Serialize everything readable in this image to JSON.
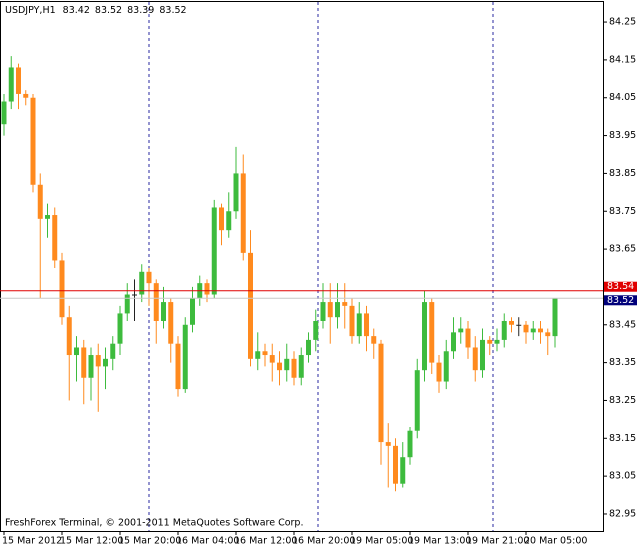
{
  "chart_data": {
    "type": "candlestick",
    "symbol": "USDJPY,H1",
    "footer": "FreshForex Terminal, © 2001-2011 MetaQuotes Software Corp.",
    "up_color": "#3dbb3d",
    "down_color": "#ff8a1e",
    "doji_color": "#222222",
    "categories": [
      "15 Mar 2012",
      null,
      null,
      null,
      null,
      null,
      null,
      null,
      "15 Mar 12:00",
      null,
      null,
      null,
      null,
      null,
      null,
      null,
      "15 Mar 20:00",
      null,
      null,
      null,
      null,
      null,
      null,
      null,
      "16 Mar 04:00",
      null,
      null,
      null,
      null,
      null,
      null,
      null,
      "16 Mar 12:00",
      null,
      null,
      null,
      null,
      null,
      null,
      null,
      "16 Mar 20:00",
      null,
      null,
      null,
      null,
      null,
      null,
      null,
      "19 Mar 05:00",
      null,
      null,
      null,
      null,
      null,
      null,
      null,
      "19 Mar 13:00",
      null,
      null,
      null,
      null,
      null,
      null,
      null,
      "19 Mar 21:00",
      null,
      null,
      null,
      null,
      null,
      null,
      null,
      "20 Mar 05:00",
      null,
      null,
      null,
      null
    ],
    "open": [
      83.98,
      84.04,
      84.13,
      84.06,
      84.05,
      83.82,
      83.73,
      83.74,
      83.62,
      83.47,
      83.37,
      83.39,
      83.31,
      83.37,
      83.34,
      83.36,
      83.4,
      83.48,
      83.53,
      83.53,
      83.59,
      83.56,
      83.46,
      83.51,
      83.4,
      83.28,
      83.45,
      83.52,
      83.56,
      83.53,
      83.76,
      83.7,
      83.75,
      83.85,
      83.64,
      83.36,
      83.38,
      83.37,
      83.35,
      83.33,
      83.36,
      83.31,
      83.37,
      83.41,
      83.46,
      83.51,
      83.47,
      83.51,
      83.5,
      83.42,
      83.48,
      83.42,
      83.4,
      83.14,
      83.13,
      83.03,
      83.1,
      83.17,
      83.33,
      83.51,
      83.35,
      83.3,
      83.38,
      83.43,
      83.44,
      83.39,
      83.33,
      83.41,
      83.4,
      83.41,
      83.46,
      83.45,
      83.45,
      83.43,
      83.44,
      83.43,
      83.42
    ],
    "high": [
      84.06,
      84.16,
      84.14,
      84.07,
      84.06,
      83.85,
      83.77,
      83.76,
      83.64,
      83.5,
      83.42,
      83.41,
      83.39,
      83.4,
      83.39,
      83.42,
      83.5,
      83.56,
      83.57,
      83.61,
      83.6,
      83.57,
      83.55,
      83.52,
      83.42,
      83.47,
      83.55,
      83.58,
      83.57,
      83.78,
      83.77,
      83.8,
      83.92,
      83.9,
      83.7,
      83.43,
      83.4,
      83.4,
      83.38,
      83.4,
      83.38,
      83.39,
      83.43,
      83.49,
      83.56,
      83.56,
      83.56,
      83.56,
      83.52,
      83.51,
      83.5,
      83.44,
      83.41,
      83.19,
      83.15,
      83.14,
      83.18,
      83.36,
      83.54,
      83.52,
      83.37,
      83.41,
      83.47,
      83.47,
      83.46,
      83.42,
      83.44,
      83.42,
      83.44,
      83.48,
      83.47,
      83.47,
      83.46,
      83.46,
      83.46,
      83.44,
      83.52
    ],
    "low": [
      83.95,
      84.02,
      84.02,
      84.03,
      83.8,
      83.52,
      83.68,
      83.6,
      83.45,
      83.25,
      83.3,
      83.24,
      83.25,
      83.22,
      83.28,
      83.33,
      83.37,
      83.46,
      83.46,
      83.51,
      83.5,
      83.4,
      83.44,
      83.35,
      83.26,
      83.27,
      83.43,
      83.5,
      83.51,
      83.52,
      83.66,
      83.68,
      83.73,
      83.62,
      83.34,
      83.33,
      83.34,
      83.3,
      83.29,
      83.3,
      83.29,
      83.29,
      83.35,
      83.38,
      83.44,
      83.4,
      83.44,
      83.44,
      83.4,
      83.4,
      83.38,
      83.36,
      83.08,
      83.02,
      83.01,
      83.02,
      83.08,
      83.15,
      83.3,
      83.32,
      83.27,
      83.28,
      83.36,
      83.4,
      83.36,
      83.3,
      83.31,
      83.37,
      83.38,
      83.39,
      83.43,
      83.42,
      83.4,
      83.41,
      83.4,
      83.37,
      83.39
    ],
    "close": [
      84.04,
      84.13,
      84.06,
      84.05,
      83.82,
      83.73,
      83.74,
      83.62,
      83.47,
      83.37,
      83.39,
      83.31,
      83.37,
      83.34,
      83.36,
      83.4,
      83.48,
      83.53,
      83.53,
      83.59,
      83.56,
      83.46,
      83.51,
      83.4,
      83.28,
      83.45,
      83.52,
      83.56,
      83.53,
      83.76,
      83.7,
      83.75,
      83.85,
      83.64,
      83.36,
      83.38,
      83.37,
      83.35,
      83.33,
      83.36,
      83.31,
      83.37,
      83.41,
      83.46,
      83.51,
      83.47,
      83.51,
      83.5,
      83.42,
      83.48,
      83.42,
      83.4,
      83.14,
      83.13,
      83.03,
      83.1,
      83.17,
      83.33,
      83.51,
      83.35,
      83.3,
      83.38,
      83.43,
      83.44,
      83.39,
      83.33,
      83.41,
      83.4,
      83.41,
      83.46,
      83.45,
      83.45,
      83.43,
      83.44,
      83.43,
      83.42,
      83.52
    ],
    "price_lines": [
      {
        "value": 83.54,
        "color": "#e00000"
      },
      {
        "value": 83.52,
        "color": "#c8c8c8"
      }
    ],
    "ylim": [
      82.905,
      84.303
    ],
    "yticks": [
      84.25,
      84.15,
      84.05,
      83.95,
      83.85,
      83.75,
      83.65,
      83.45,
      83.35,
      83.25,
      83.15,
      83.05,
      82.95
    ]
  }
}
